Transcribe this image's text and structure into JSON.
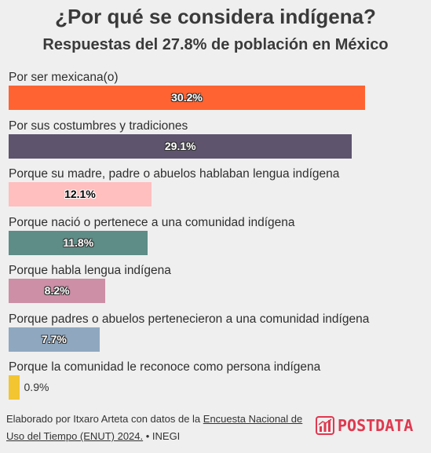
{
  "header": {
    "title": "¿Por qué se considera indígena?",
    "subtitle": "Respuestas del 27.8% de población en México"
  },
  "chart_data": {
    "type": "bar",
    "orientation": "horizontal",
    "title": "¿Por qué se considera indígena?",
    "subtitle": "Respuestas del 27.8% de población en México",
    "categories": [
      "Por ser mexicana(o)",
      "Por sus costumbres y tradiciones",
      "Porque su madre, padre o abuelos hablaban lengua indígena",
      "Porque nació o pertenece a una comunidad indígena",
      "Porque habla lengua indígena",
      "Porque padres o abuelos pertenecieron a una comunidad indígena",
      "Porque la comunidad le reconoce como persona indígena"
    ],
    "values": [
      30.2,
      29.1,
      12.1,
      11.8,
      8.2,
      7.7,
      0.9
    ],
    "value_labels": [
      "30.2%",
      "29.1%",
      "12.1%",
      "11.8%",
      "8.2%",
      "7.7%",
      "0.9%"
    ],
    "colors": [
      "#ff6331",
      "#5e546e",
      "#ffbfbf",
      "#5e8c86",
      "#cc8fa6",
      "#8fa8c0",
      "#f2c531"
    ],
    "unit": "%",
    "xlim": [
      0,
      30.2
    ],
    "grid": false,
    "legend": "none"
  },
  "footer": {
    "text_before": "Elaborado por Itxaro Arteta con datos de la ",
    "link_text": "Encuesta Nacional de Uso del Tiempo (ENUT) 2024.",
    "text_after": " • INEGI"
  },
  "logo": {
    "text": "POSTDATA",
    "color": "#e0384f"
  }
}
